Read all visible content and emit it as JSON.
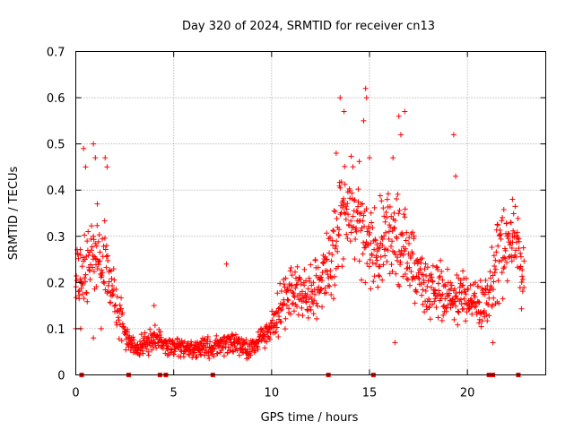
{
  "chart_data": {
    "type": "scatter",
    "title": "Day 320 of 2024, SRMTID for receiver cn13",
    "xlabel": "GPS time / hours",
    "ylabel": "SRMTID / TECUs",
    "xlim": [
      0,
      24
    ],
    "ylim": [
      0,
      0.7
    ],
    "xticks": [
      0,
      5,
      10,
      15,
      20
    ],
    "yticks": [
      0,
      0.1,
      0.2,
      0.3,
      0.4,
      0.5,
      0.6,
      0.7
    ],
    "grid": true,
    "marker": "plus",
    "color": "#ff0000",
    "legend": "none",
    "profile": [
      [
        0,
        0.24
      ],
      [
        0.5,
        0.22
      ],
      [
        1,
        0.26
      ],
      [
        1.5,
        0.25
      ],
      [
        2,
        0.16
      ],
      [
        2.5,
        0.09
      ],
      [
        3,
        0.06
      ],
      [
        3.5,
        0.07
      ],
      [
        4,
        0.08
      ],
      [
        4.5,
        0.07
      ],
      [
        5,
        0.06
      ],
      [
        5.5,
        0.06
      ],
      [
        6,
        0.05
      ],
      [
        6.5,
        0.06
      ],
      [
        7,
        0.06
      ],
      [
        7.5,
        0.07
      ],
      [
        8,
        0.07
      ],
      [
        8.5,
        0.06
      ],
      [
        9,
        0.06
      ],
      [
        9.5,
        0.08
      ],
      [
        10,
        0.1
      ],
      [
        10.5,
        0.15
      ],
      [
        11,
        0.19
      ],
      [
        11.5,
        0.18
      ],
      [
        12,
        0.17
      ],
      [
        12.5,
        0.2
      ],
      [
        13,
        0.26
      ],
      [
        13.5,
        0.33
      ],
      [
        14,
        0.35
      ],
      [
        14.5,
        0.34
      ],
      [
        15,
        0.28
      ],
      [
        15.5,
        0.27
      ],
      [
        16,
        0.3
      ],
      [
        16.5,
        0.3
      ],
      [
        17,
        0.26
      ],
      [
        17.5,
        0.21
      ],
      [
        18,
        0.19
      ],
      [
        18.5,
        0.19
      ],
      [
        19,
        0.18
      ],
      [
        19.5,
        0.17
      ],
      [
        20,
        0.17
      ],
      [
        20.5,
        0.15
      ],
      [
        21,
        0.16
      ],
      [
        21.5,
        0.25
      ],
      [
        22,
        0.29
      ],
      [
        22.5,
        0.29
      ],
      [
        22.9,
        0.22
      ]
    ],
    "peaks": [
      [
        0.3,
        0.2
      ],
      [
        0.4,
        0.49
      ],
      [
        0.5,
        0.45
      ],
      [
        0.9,
        0.5
      ],
      [
        1,
        0.47
      ],
      [
        1.1,
        0.37
      ],
      [
        1.5,
        0.47
      ],
      [
        1.6,
        0.45
      ],
      [
        4,
        0.15
      ],
      [
        7.7,
        0.24
      ],
      [
        13.3,
        0.48
      ],
      [
        13.5,
        0.6
      ],
      [
        13.7,
        0.57
      ],
      [
        14.8,
        0.62
      ],
      [
        14.85,
        0.6
      ],
      [
        14.7,
        0.55
      ],
      [
        15,
        0.47
      ],
      [
        16.5,
        0.56
      ],
      [
        16.6,
        0.52
      ],
      [
        16.8,
        0.57
      ],
      [
        16.2,
        0.47
      ],
      [
        19.3,
        0.52
      ],
      [
        19.4,
        0.43
      ],
      [
        22.3,
        0.38
      ]
    ],
    "gaps": [
      [
        0,
        0.1
      ],
      [
        0.25,
        0.1
      ],
      [
        0.9,
        0.08
      ],
      [
        1.3,
        0.1
      ],
      [
        16.3,
        0.07
      ],
      [
        21.3,
        0.07
      ]
    ],
    "rug_x": [
      0.3,
      2.7,
      4.3,
      4.6,
      7.0,
      12.9,
      15.2,
      21.1,
      21.3,
      22.6
    ]
  }
}
